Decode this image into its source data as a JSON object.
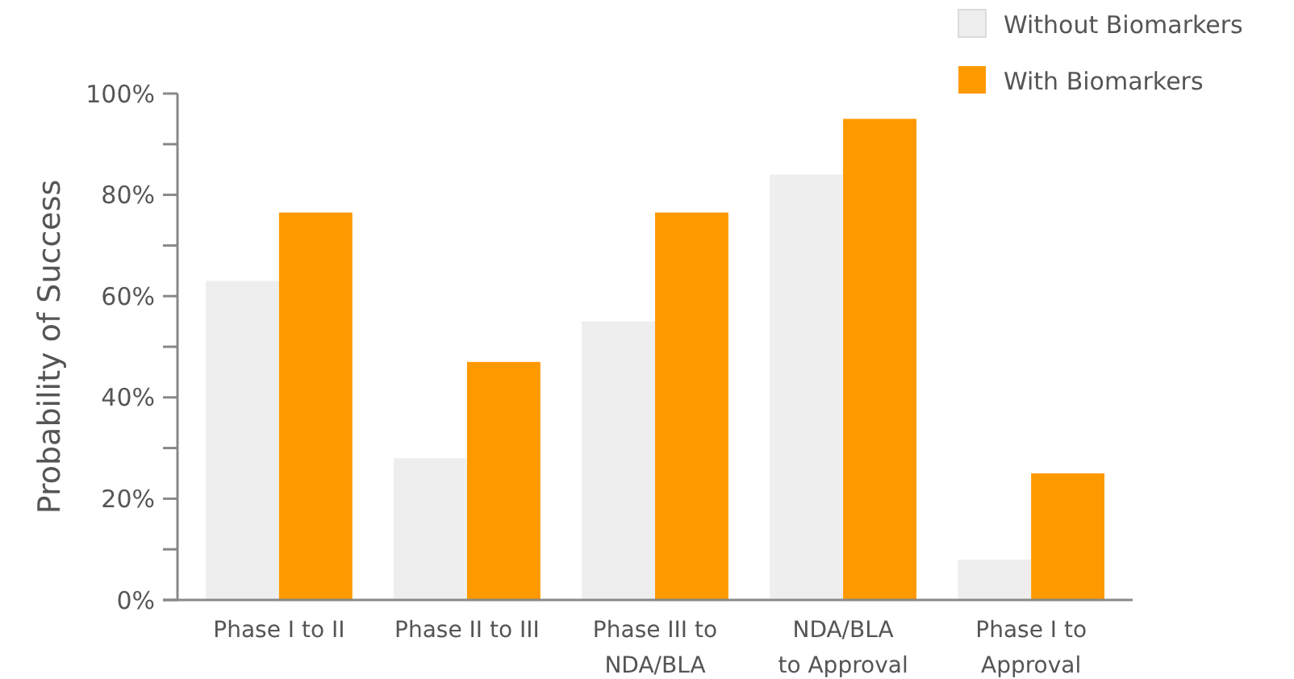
{
  "chart_data": {
    "type": "bar",
    "ylabel": "Probability of Success",
    "categories": [
      "Phase I to II",
      "Phase II to III",
      "Phase III to\nNDA/BLA",
      "NDA/BLA\nto Approval",
      "Phase I to\nApproval"
    ],
    "series": [
      {
        "name": "Without Biomarkers",
        "color": "#eeeeee",
        "values": [
          63,
          28,
          55,
          84,
          8
        ]
      },
      {
        "name": "With Biomarkers",
        "color": "#ff9900",
        "values": [
          76.5,
          47,
          76.5,
          95,
          25
        ]
      }
    ],
    "ylim": [
      0,
      100
    ],
    "yticks": [
      {
        "value": 0,
        "label": "0%"
      },
      {
        "value": 10,
        "label": null
      },
      {
        "value": 20,
        "label": "20%"
      },
      {
        "value": 30,
        "label": null
      },
      {
        "value": 40,
        "label": "40%"
      },
      {
        "value": 50,
        "label": null
      },
      {
        "value": 60,
        "label": "60%"
      },
      {
        "value": 70,
        "label": null
      },
      {
        "value": 80,
        "label": "80%"
      },
      {
        "value": 90,
        "label": null
      },
      {
        "value": 100,
        "label": "100%"
      }
    ],
    "grid": false,
    "legend": "top right"
  }
}
